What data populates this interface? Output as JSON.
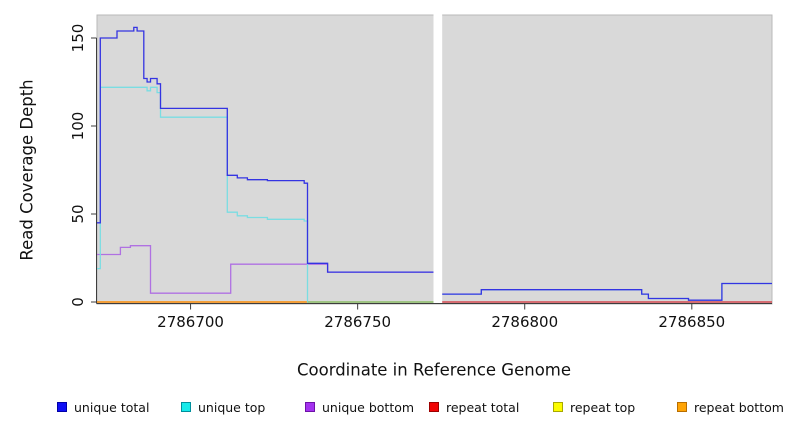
{
  "figure": {
    "background": "#ffffff",
    "panel_background": "#d9d9d9",
    "panel_border": "#b9b9b9",
    "spine_color": "#3d3d3d",
    "gap_color": "#ffffff",
    "text_color": "#111111"
  },
  "chart_data": {
    "type": "line",
    "subtype": "step-coverage",
    "xlabel": "Coordinate in Reference Genome",
    "ylabel": "Read Coverage Depth",
    "xlim": [
      2786672,
      2786874
    ],
    "ylim": [
      0,
      150
    ],
    "grid": "off",
    "x_ticks": [
      2786700,
      2786750,
      2786800,
      2786850
    ],
    "x_tick_labels": [
      "2786700",
      "2786750",
      "2786800",
      "2786850"
    ],
    "y_ticks": [
      0,
      50,
      100,
      150
    ],
    "y_tick_labels": [
      "0",
      "50",
      "100",
      "150"
    ],
    "no_data_gap": [
      2786773,
      2786775
    ],
    "series": [
      {
        "name": "repeat total",
        "color": "#e01010",
        "segments": [
          {
            "steps": [
              [
                2786672,
                0
              ]
            ],
            "end": 2786773
          },
          {
            "steps": [
              [
                2786775,
                0
              ]
            ],
            "end": 2786874
          }
        ]
      },
      {
        "name": "repeat top",
        "color": "#f0f000",
        "segments": [
          {
            "steps": [
              [
                2786672,
                0
              ]
            ],
            "end": 2786773
          },
          {
            "steps": [
              [
                2786775,
                0
              ]
            ],
            "end": 2786874
          }
        ]
      },
      {
        "name": "repeat bottom",
        "color": "#ff9012",
        "segments": [
          {
            "steps": [
              [
                2786672,
                0
              ]
            ],
            "end": 2786773
          },
          {
            "steps": [
              [
                2786775,
                0
              ]
            ],
            "end": 2786874
          }
        ]
      },
      {
        "name": "unique bottom",
        "color": "#b071e2",
        "segments": [
          {
            "steps": [
              [
                2786672,
                27
              ],
              [
                2786679,
                31
              ],
              [
                2786682,
                32
              ],
              [
                2786688,
                5
              ],
              [
                2786712,
                21.5
              ],
              [
                2786741,
                17
              ],
              [
                2786773,
                0
              ]
            ],
            "end": 2786773
          },
          {
            "steps": [
              [
                2786775,
                0
              ]
            ],
            "end": 2786874
          }
        ]
      },
      {
        "name": "unique top",
        "color": "#7adde2",
        "segments": [
          {
            "steps": [
              [
                2786672,
                19
              ],
              [
                2786673,
                122
              ],
              [
                2786687,
                120
              ],
              [
                2786688,
                122
              ],
              [
                2786690,
                119
              ],
              [
                2786691,
                105
              ],
              [
                2786711,
                51
              ],
              [
                2786714,
                49
              ],
              [
                2786717,
                48
              ],
              [
                2786723,
                47
              ],
              [
                2786734,
                46
              ],
              [
                2786735,
                0
              ]
            ],
            "end": 2786773
          },
          {
            "steps": [
              [
                2786775,
                4.5
              ],
              [
                2786787,
                7
              ],
              [
                2786835,
                4.5
              ],
              [
                2786837,
                2
              ],
              [
                2786849,
                1
              ],
              [
                2786859,
                10.5
              ]
            ],
            "end": 2786874
          }
        ]
      },
      {
        "name": "unique total",
        "color": "#3434e2",
        "segments": [
          {
            "steps": [
              [
                2786672,
                45
              ],
              [
                2786673,
                150
              ],
              [
                2786678,
                154
              ],
              [
                2786683,
                156
              ],
              [
                2786684,
                154
              ],
              [
                2786686,
                127
              ],
              [
                2786687,
                125
              ],
              [
                2786688,
                127
              ],
              [
                2786690,
                124
              ],
              [
                2786691,
                110
              ],
              [
                2786711,
                72
              ],
              [
                2786714,
                70.5
              ],
              [
                2786717,
                69.5
              ],
              [
                2786723,
                69
              ],
              [
                2786734,
                67.5
              ],
              [
                2786735,
                22
              ],
              [
                2786741,
                17
              ],
              [
                2786773,
                0
              ]
            ],
            "end": 2786773
          },
          {
            "steps": [
              [
                2786775,
                4.5
              ],
              [
                2786787,
                7
              ],
              [
                2786835,
                4.5
              ],
              [
                2786837,
                2
              ],
              [
                2786849,
                1
              ],
              [
                2786859,
                10.5
              ]
            ],
            "end": 2786874
          }
        ]
      }
    ],
    "baseline_render_segments": [
      {
        "color": "#85ca85",
        "x_start": 2786735,
        "x_end": 2786773,
        "value": 0
      },
      {
        "color": "#d4506a",
        "x_start": 2786775,
        "x_end": 2786874,
        "value": 0
      }
    ],
    "legend": {
      "position": "bottom",
      "entries": [
        {
          "label": "unique total",
          "fill": "#0f0ff5",
          "border": "#0000a8"
        },
        {
          "label": "unique top",
          "fill": "#16eaea",
          "border": "#008f9c"
        },
        {
          "label": "unique bottom",
          "fill": "#a432f0",
          "border": "#6e12a8"
        },
        {
          "label": "repeat total",
          "fill": "#f00505",
          "border": "#9c0000"
        },
        {
          "label": "repeat top",
          "fill": "#fcfc00",
          "border": "#a8a800"
        },
        {
          "label": "repeat bottom",
          "fill": "#ffa405",
          "border": "#b86e00"
        }
      ]
    }
  }
}
